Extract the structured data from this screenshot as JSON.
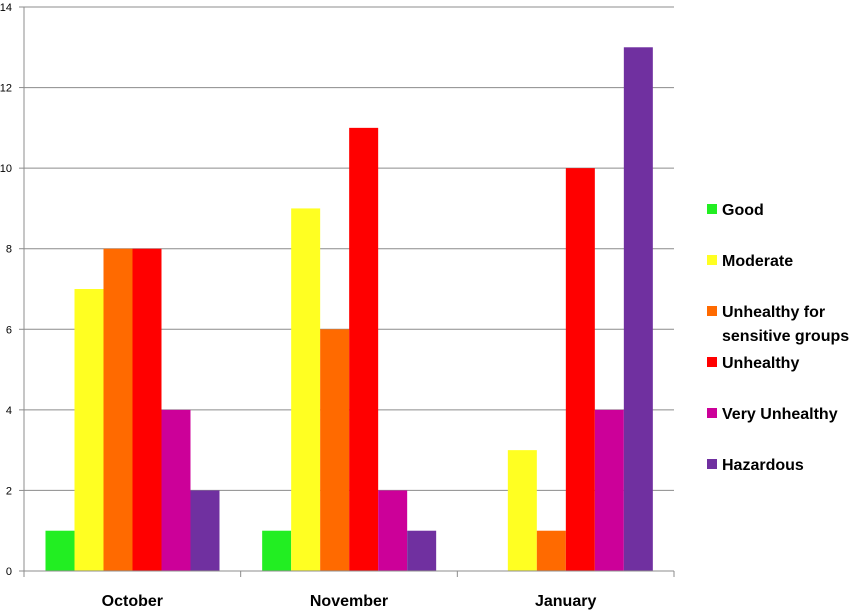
{
  "chart_data": {
    "type": "bar",
    "title": "",
    "xlabel": "",
    "ylabel": "",
    "ylim": [
      0,
      14
    ],
    "yticks": [
      0,
      2,
      4,
      6,
      8,
      10,
      12,
      14
    ],
    "grid": true,
    "legend_position": "right",
    "categories": [
      "October",
      "November",
      "January"
    ],
    "series": [
      {
        "name": "Good",
        "color": "#22ee22",
        "values": [
          1,
          1,
          0
        ]
      },
      {
        "name": "Moderate",
        "color": "#ffff22",
        "values": [
          7,
          9,
          3
        ]
      },
      {
        "name": "Unhealthy for sensitive groups",
        "legend_lines": [
          "Unhealthy for",
          "sensitive groups"
        ],
        "color": "#ff6a00",
        "values": [
          8,
          6,
          1
        ]
      },
      {
        "name": "Unhealthy",
        "color": "#ff0000",
        "values": [
          8,
          11,
          10
        ]
      },
      {
        "name": "Very Unhealthy",
        "color": "#cc0099",
        "values": [
          4,
          2,
          4
        ]
      },
      {
        "name": "Hazardous",
        "color": "#7030a0",
        "values": [
          2,
          1,
          13
        ]
      }
    ]
  }
}
